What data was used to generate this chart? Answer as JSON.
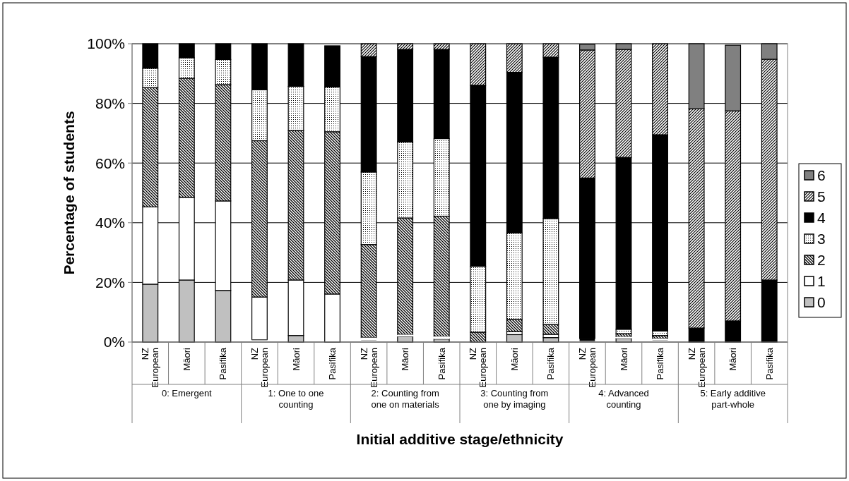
{
  "chart_data": {
    "type": "bar",
    "stacked": true,
    "xlabel": "Initial additive stage/ethnicity",
    "ylabel": "Percentage of students",
    "categories": [
      "NZ European",
      "Māori",
      "Pasifika",
      "NZ European",
      "Māori",
      "Pasifika",
      "NZ European",
      "Māori",
      "Pasifika",
      "NZ European",
      "Māori",
      "Pasifika",
      "NZ European",
      "Māori",
      "Pasifika",
      "NZ European",
      "Māori",
      "Pasifika"
    ],
    "annotations": [
      "0: Emergent",
      "1: One to one counting",
      "2: Counting from one on materials",
      "3: Counting from one by imaging",
      "4: Advanced counting",
      "5: Early additive part-whole"
    ],
    "series": [
      {
        "name": "0",
        "color": "#c0c0c0",
        "values": [
          19.4,
          20.8,
          17.3,
          0.8,
          2.2,
          null,
          0.7,
          1.8,
          1.0,
          0,
          2.5,
          1.5,
          null,
          1.2,
          0.7,
          0,
          null,
          0
        ]
      },
      {
        "name": "1",
        "color": "#ffffff",
        "values": [
          25.9,
          27.7,
          30.0,
          14.3,
          18.6,
          16.1,
          0.8,
          0.7,
          0.9,
          0,
          1.0,
          1.1,
          0.2,
          0.6,
          0.5,
          0,
          0,
          0
        ]
      },
      {
        "name": "2",
        "color": "#000000",
        "values": [
          40.0,
          39.9,
          39.0,
          52.4,
          50.1,
          54.4,
          31.2,
          39.1,
          40.3,
          3.3,
          4.1,
          3.3,
          0.4,
          1.0,
          1.0,
          0,
          0,
          0
        ]
      },
      {
        "name": "3",
        "color": "#000000",
        "values": [
          6.5,
          6.9,
          8.4,
          17.1,
          14.8,
          15.0,
          24.3,
          25.5,
          26.0,
          22.1,
          29.0,
          35.5,
          0.6,
          1.5,
          1.5,
          0,
          0,
          0
        ]
      },
      {
        "name": "4",
        "color": "#000000",
        "values": [
          8.2,
          4.7,
          5.3,
          15.4,
          14.3,
          13.8,
          38.7,
          31.0,
          29.9,
          60.7,
          53.8,
          54.1,
          53.8,
          57.6,
          65.8,
          4.7,
          7.1,
          20.8
        ]
      },
      {
        "name": "5",
        "color": "#000000",
        "values": [
          0,
          0,
          0,
          0,
          0,
          null,
          4.3,
          1.9,
          1.9,
          13.9,
          9.6,
          4.5,
          42.9,
          36.2,
          30.5,
          73.5,
          70.4,
          74.0
        ]
      },
      {
        "name": "6",
        "color": "#808080",
        "values": [
          0,
          0,
          0,
          0,
          0,
          0,
          0,
          0,
          0,
          0,
          0,
          0,
          1.9,
          1.9,
          0,
          21.8,
          22.0,
          5.2
        ]
      }
    ],
    "ylim": [
      0,
      100
    ],
    "yticks": [
      {
        "value": 0,
        "label": "0%"
      },
      {
        "value": 20,
        "label": "20%"
      },
      {
        "value": 40,
        "label": "40%"
      },
      {
        "value": 60,
        "label": "60%"
      },
      {
        "value": 80,
        "label": "80%"
      },
      {
        "value": 100,
        "label": "100%"
      }
    ],
    "grid": "y",
    "legend": "right"
  }
}
